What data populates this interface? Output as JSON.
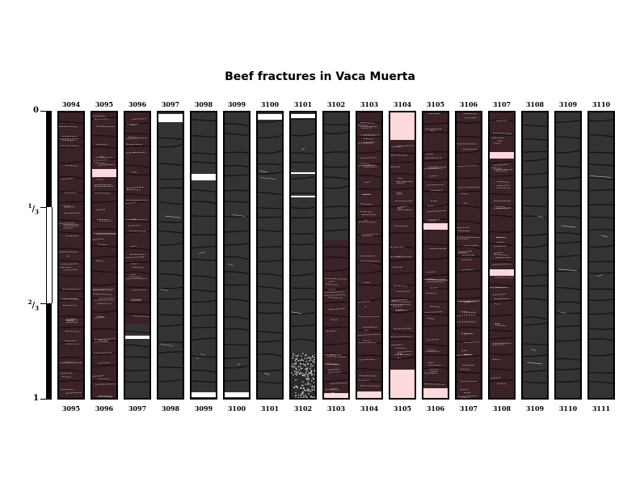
{
  "title": "Beef fractures in Vaca Muerta",
  "scale": {
    "zero": "0",
    "third_num": "1",
    "third_den": "3",
    "twothird_num": "2",
    "twothird_den": "3",
    "one": "1"
  },
  "colors": {
    "core_gray": "#333333",
    "core_maroon": "#3b2226",
    "gap_white": "#ffffff",
    "gap_pink": "#ffd9dc",
    "fracture_line": "#111111",
    "beef_vein": "#d9c8c8"
  },
  "cores": [
    {
      "top": "3094",
      "bottom": "3095"
    },
    {
      "top": "3095",
      "bottom": "3096"
    },
    {
      "top": "3096",
      "bottom": "3097"
    },
    {
      "top": "3097",
      "bottom": "3098"
    },
    {
      "top": "3098",
      "bottom": "3099"
    },
    {
      "top": "3099",
      "bottom": "3100"
    },
    {
      "top": "3100",
      "bottom": "3101"
    },
    {
      "top": "3101",
      "bottom": "3102"
    },
    {
      "top": "3102",
      "bottom": "3103"
    },
    {
      "top": "3103",
      "bottom": "3104"
    },
    {
      "top": "3104",
      "bottom": "3105"
    },
    {
      "top": "3105",
      "bottom": "3106"
    },
    {
      "top": "3106",
      "bottom": "3107"
    },
    {
      "top": "3107",
      "bottom": "3108"
    },
    {
      "top": "3108",
      "bottom": "3109"
    },
    {
      "top": "3109",
      "bottom": "3110"
    },
    {
      "top": "3110",
      "bottom": "3111"
    }
  ]
}
